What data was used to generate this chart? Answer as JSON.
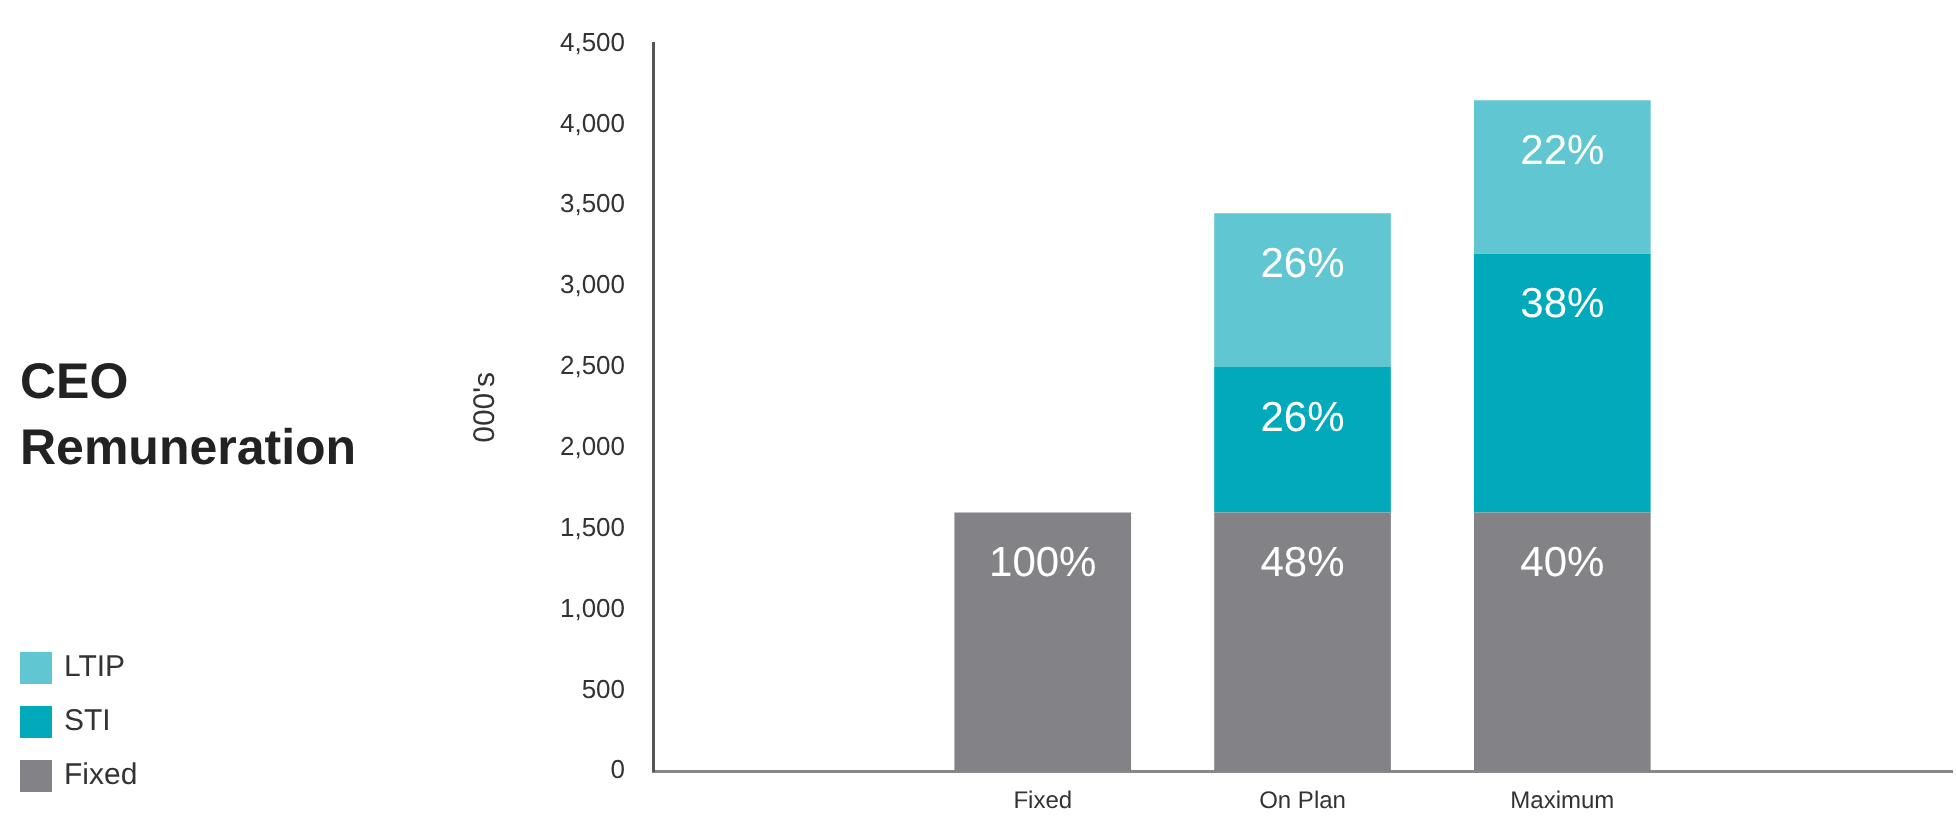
{
  "chart_data": {
    "type": "bar",
    "title": "CEO Remuneration",
    "ylabel": "000's",
    "stacked": true,
    "legend": "bottom left",
    "grid": false,
    "categories": [
      null,
      "Fixed",
      "On Plan",
      "Maximum",
      null
    ],
    "series": [
      {
        "name": "Fixed",
        "color": "#838387",
        "values": [
          null,
          1600,
          1600,
          1600,
          null
        ]
      },
      {
        "name": "STI",
        "color": "#00aabb",
        "values": [
          null,
          null,
          900,
          1600,
          null
        ]
      },
      {
        "name": "LTIP",
        "color": "#60c6d1",
        "values": [
          null,
          null,
          950,
          950,
          null
        ]
      }
    ],
    "annotations": [
      {
        "text": "100%",
        "x": "Fixed",
        "y": 1600
      },
      {
        "text": "48%",
        "x": "On Plan",
        "y": 1600
      },
      {
        "text": "26%",
        "x": "On Plan",
        "y": 2500
      },
      {
        "text": "26%",
        "x": "On Plan",
        "y": 3450
      },
      {
        "text": "40%",
        "x": "Maximum",
        "y": 1600
      },
      {
        "text": "38%",
        "x": "Maximum",
        "y": 3200
      },
      {
        "text": "22%",
        "x": "Maximum",
        "y": 4150
      }
    ],
    "ylim": [
      0,
      4500
    ],
    "yticks": [
      0,
      500,
      {
        "value": 1000,
        "label": "1,000"
      },
      {
        "value": 1500,
        "label": "1,500"
      },
      {
        "value": 2000,
        "label": "2,000"
      },
      {
        "value": 2500,
        "label": "2,500"
      },
      {
        "value": 3000,
        "label": "3,000"
      },
      {
        "value": 3500,
        "label": "3,500"
      },
      {
        "value": 4000,
        "label": "4,000"
      },
      {
        "value": 4500,
        "label": "4,500"
      }
    ]
  }
}
